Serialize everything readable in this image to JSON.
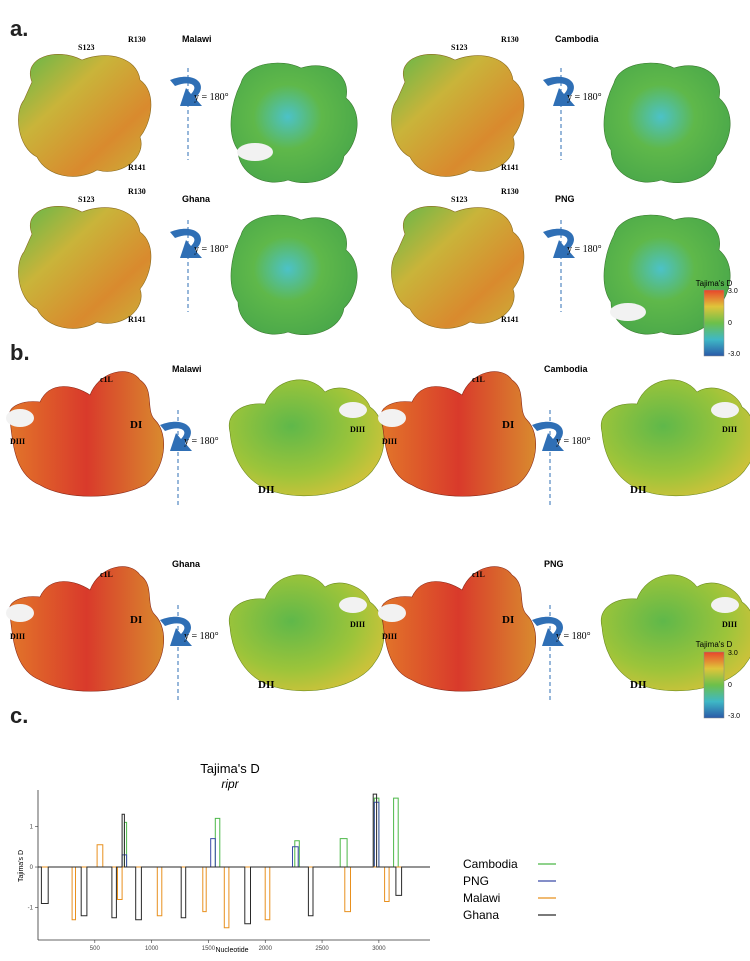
{
  "panels": {
    "a": "a.",
    "b": "b.",
    "c": "c."
  },
  "rotation_label": "y = 180°",
  "colors": {
    "red": "#d93a2b",
    "orange": "#e2762a",
    "yellow": "#d9c23a",
    "green": "#5fb84a",
    "cyan": "#4cc2c8",
    "blue": "#2a5aa8",
    "white": "#f2f2f2"
  },
  "panel_a": {
    "groups": [
      {
        "country": "Malawi",
        "labels": [
          "S123",
          "R130",
          "R141"
        ]
      },
      {
        "country": "Cambodia",
        "labels": [
          "S123",
          "R130",
          "R141"
        ]
      },
      {
        "country": "Ghana",
        "labels": [
          "S123",
          "R130",
          "R141"
        ]
      },
      {
        "country": "PNG",
        "labels": [
          "S123",
          "R130",
          "R141"
        ]
      }
    ],
    "scale": {
      "title": "Tajima's D",
      "max": "3.0",
      "mid": "0",
      "min": "-3.0"
    }
  },
  "panel_b": {
    "groups": [
      {
        "country": "Malawi",
        "labels": [
          "c1L",
          "DI",
          "DIII",
          "DII",
          "DIII"
        ]
      },
      {
        "country": "Cambodia",
        "labels": [
          "c1L",
          "DI",
          "DIII",
          "DII",
          "DIII"
        ]
      },
      {
        "country": "Ghana",
        "labels": [
          "c1L",
          "DI",
          "DIII",
          "DII",
          "DIII"
        ]
      },
      {
        "country": "PNG",
        "labels": [
          "c1L",
          "DI",
          "DIII",
          "DII",
          "DIII"
        ]
      }
    ],
    "scale": {
      "title": "Tajima's D",
      "max": "3.0",
      "mid": "0",
      "min": "-3.0"
    }
  },
  "chart_data": {
    "type": "line",
    "title": "Tajima's D",
    "subtitle": "ripr",
    "xlabel": "Nucleotide",
    "ylabel": "Tajima's D",
    "xlim": [
      0,
      3450
    ],
    "ylim": [
      -1.8,
      1.9
    ],
    "xticks": [
      500,
      1000,
      1500,
      2000,
      2500,
      3000
    ],
    "yticks": [
      1,
      0,
      -1
    ],
    "legend_position": "right",
    "series": [
      {
        "name": "Cambodia",
        "color": "#4cb848",
        "points": [
          [
            0,
            0
          ],
          [
            760,
            0
          ],
          [
            760,
            1.1
          ],
          [
            780,
            1.1
          ],
          [
            780,
            0
          ],
          [
            1560,
            0
          ],
          [
            1560,
            1.2
          ],
          [
            1600,
            1.2
          ],
          [
            1600,
            0
          ],
          [
            2260,
            0
          ],
          [
            2260,
            0.65
          ],
          [
            2300,
            0.65
          ],
          [
            2300,
            0
          ],
          [
            2660,
            0
          ],
          [
            2660,
            0.7
          ],
          [
            2720,
            0.7
          ],
          [
            2720,
            0
          ],
          [
            2960,
            0
          ],
          [
            2960,
            1.7
          ],
          [
            3000,
            1.7
          ],
          [
            3000,
            0
          ],
          [
            3130,
            0
          ],
          [
            3130,
            1.7
          ],
          [
            3170,
            1.7
          ],
          [
            3170,
            0
          ],
          [
            3450,
            0
          ]
        ]
      },
      {
        "name": "PNG",
        "color": "#3a4ba8",
        "points": [
          [
            0,
            0
          ],
          [
            740,
            0
          ],
          [
            740,
            0.3
          ],
          [
            780,
            0.3
          ],
          [
            780,
            0
          ],
          [
            1520,
            0
          ],
          [
            1520,
            0.7
          ],
          [
            1560,
            0.7
          ],
          [
            1560,
            0
          ],
          [
            2240,
            0
          ],
          [
            2240,
            0.5
          ],
          [
            2290,
            0.5
          ],
          [
            2290,
            0
          ],
          [
            2960,
            0
          ],
          [
            2960,
            1.6
          ],
          [
            3000,
            1.6
          ],
          [
            3000,
            0
          ],
          [
            3450,
            0
          ]
        ]
      },
      {
        "name": "Malawi",
        "color": "#e8901e",
        "points": [
          [
            0,
            0
          ],
          [
            300,
            0
          ],
          [
            300,
            -1.3
          ],
          [
            330,
            -1.3
          ],
          [
            330,
            0
          ],
          [
            520,
            0
          ],
          [
            520,
            0.55
          ],
          [
            570,
            0.55
          ],
          [
            570,
            0
          ],
          [
            700,
            0
          ],
          [
            700,
            -0.8
          ],
          [
            740,
            -0.8
          ],
          [
            740,
            0
          ],
          [
            1050,
            0
          ],
          [
            1050,
            -1.2
          ],
          [
            1090,
            -1.2
          ],
          [
            1090,
            0
          ],
          [
            1450,
            0
          ],
          [
            1450,
            -1.1
          ],
          [
            1480,
            -1.1
          ],
          [
            1480,
            0
          ],
          [
            1640,
            0
          ],
          [
            1640,
            -1.5
          ],
          [
            1680,
            -1.5
          ],
          [
            1680,
            0
          ],
          [
            2000,
            0
          ],
          [
            2000,
            -1.3
          ],
          [
            2040,
            -1.3
          ],
          [
            2040,
            0
          ],
          [
            2700,
            0
          ],
          [
            2700,
            -1.1
          ],
          [
            2750,
            -1.1
          ],
          [
            2750,
            0
          ],
          [
            3050,
            0
          ],
          [
            3050,
            -0.85
          ],
          [
            3090,
            -0.85
          ],
          [
            3090,
            0
          ],
          [
            3450,
            0
          ]
        ]
      },
      {
        "name": "Ghana",
        "color": "#2a2a2a",
        "points": [
          [
            0,
            0
          ],
          [
            30,
            0
          ],
          [
            30,
            -0.9
          ],
          [
            90,
            -0.9
          ],
          [
            90,
            0
          ],
          [
            380,
            0
          ],
          [
            380,
            -1.2
          ],
          [
            430,
            -1.2
          ],
          [
            430,
            0
          ],
          [
            650,
            0
          ],
          [
            650,
            -1.25
          ],
          [
            690,
            -1.25
          ],
          [
            690,
            0
          ],
          [
            740,
            0
          ],
          [
            740,
            1.3
          ],
          [
            760,
            1.3
          ],
          [
            760,
            0
          ],
          [
            860,
            0
          ],
          [
            860,
            -1.3
          ],
          [
            910,
            -1.3
          ],
          [
            910,
            0
          ],
          [
            1260,
            0
          ],
          [
            1260,
            -1.25
          ],
          [
            1300,
            -1.25
          ],
          [
            1300,
            0
          ],
          [
            1820,
            0
          ],
          [
            1820,
            -1.4
          ],
          [
            1870,
            -1.4
          ],
          [
            1870,
            0
          ],
          [
            2380,
            0
          ],
          [
            2380,
            -1.2
          ],
          [
            2420,
            -1.2
          ],
          [
            2420,
            0
          ],
          [
            2950,
            0
          ],
          [
            2950,
            1.8
          ],
          [
            2980,
            1.8
          ],
          [
            2980,
            0
          ],
          [
            3150,
            0
          ],
          [
            3150,
            -0.7
          ],
          [
            3200,
            -0.7
          ],
          [
            3200,
            0
          ],
          [
            3450,
            0
          ]
        ]
      }
    ]
  }
}
